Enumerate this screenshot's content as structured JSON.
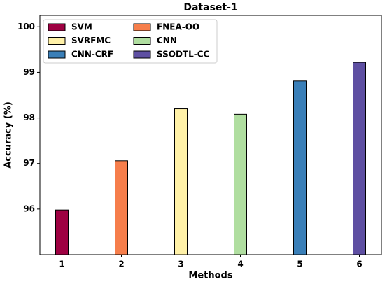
{
  "chart_data": {
    "type": "bar",
    "title": "Dataset-1",
    "x_label": "Methods",
    "y_label": "Accuracy (%)",
    "categories": [
      "1",
      "2",
      "3",
      "4",
      "5",
      "6"
    ],
    "series": [
      {
        "name": "SVM",
        "color": "#9e0142",
        "values": [
          95.98,
          null,
          null,
          null,
          null,
          null
        ]
      },
      {
        "name": "FNEA-OO",
        "color": "#f67e4b",
        "values": [
          null,
          97.06,
          null,
          null,
          null,
          null
        ]
      },
      {
        "name": "SVRFMC",
        "color": "#fff1a8",
        "values": [
          null,
          null,
          98.2,
          null,
          null,
          null
        ]
      },
      {
        "name": "CNN",
        "color": "#b0dea0",
        "values": [
          null,
          null,
          null,
          98.08,
          null,
          null
        ]
      },
      {
        "name": "CNN-CRF",
        "color": "#3a7fb8",
        "values": [
          null,
          null,
          null,
          null,
          98.81,
          null
        ]
      },
      {
        "name": "SSODTL-CC",
        "color": "#5e4fa2",
        "values": [
          null,
          null,
          null,
          null,
          null,
          99.22
        ]
      }
    ],
    "ylim": [
      95,
      100.25
    ],
    "yticks": [
      96,
      97,
      98,
      99,
      100
    ],
    "grid": false,
    "legend": "upper left"
  }
}
